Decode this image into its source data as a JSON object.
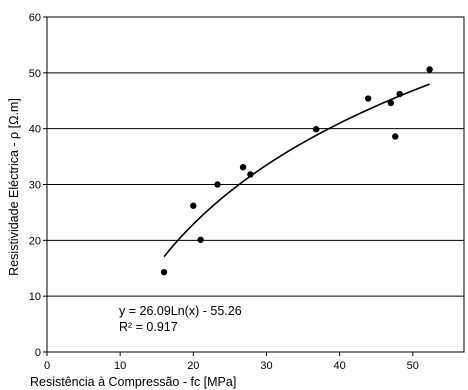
{
  "chart_data": {
    "type": "scatter",
    "title": "",
    "xlabel": "Resistência à Compressão - fc [MPa]",
    "ylabel": "Resistividade Eléctrica - ρ [Ω.m]",
    "xlim": [
      0,
      57
    ],
    "ylim": [
      0,
      60
    ],
    "xticks": [
      0,
      10,
      20,
      30,
      40,
      50
    ],
    "yticks": [
      0,
      10,
      20,
      30,
      40,
      50,
      60
    ],
    "grid": "horizontal",
    "legend": "none",
    "series": [
      {
        "points": [
          {
            "x": 16.0,
            "y": 14.3
          },
          {
            "x": 20.0,
            "y": 26.2
          },
          {
            "x": 21.0,
            "y": 20.1
          },
          {
            "x": 23.3,
            "y": 30.0
          },
          {
            "x": 26.8,
            "y": 33.1
          },
          {
            "x": 27.8,
            "y": 31.8
          },
          {
            "x": 36.8,
            "y": 39.9
          },
          {
            "x": 43.9,
            "y": 45.4
          },
          {
            "x": 47.0,
            "y": 44.6
          },
          {
            "x": 47.6,
            "y": 38.6
          },
          {
            "x": 48.2,
            "y": 46.2
          },
          {
            "x": 52.3,
            "y": 50.6
          }
        ]
      }
    ],
    "trendline": {
      "type": "logarithmic",
      "a": 26.09,
      "b": -55.26,
      "x_range": [
        16,
        52.3
      ],
      "equation_text": "y = 26.09Ln(x) - 55.26",
      "r2_text": "R² = 0.917"
    }
  }
}
